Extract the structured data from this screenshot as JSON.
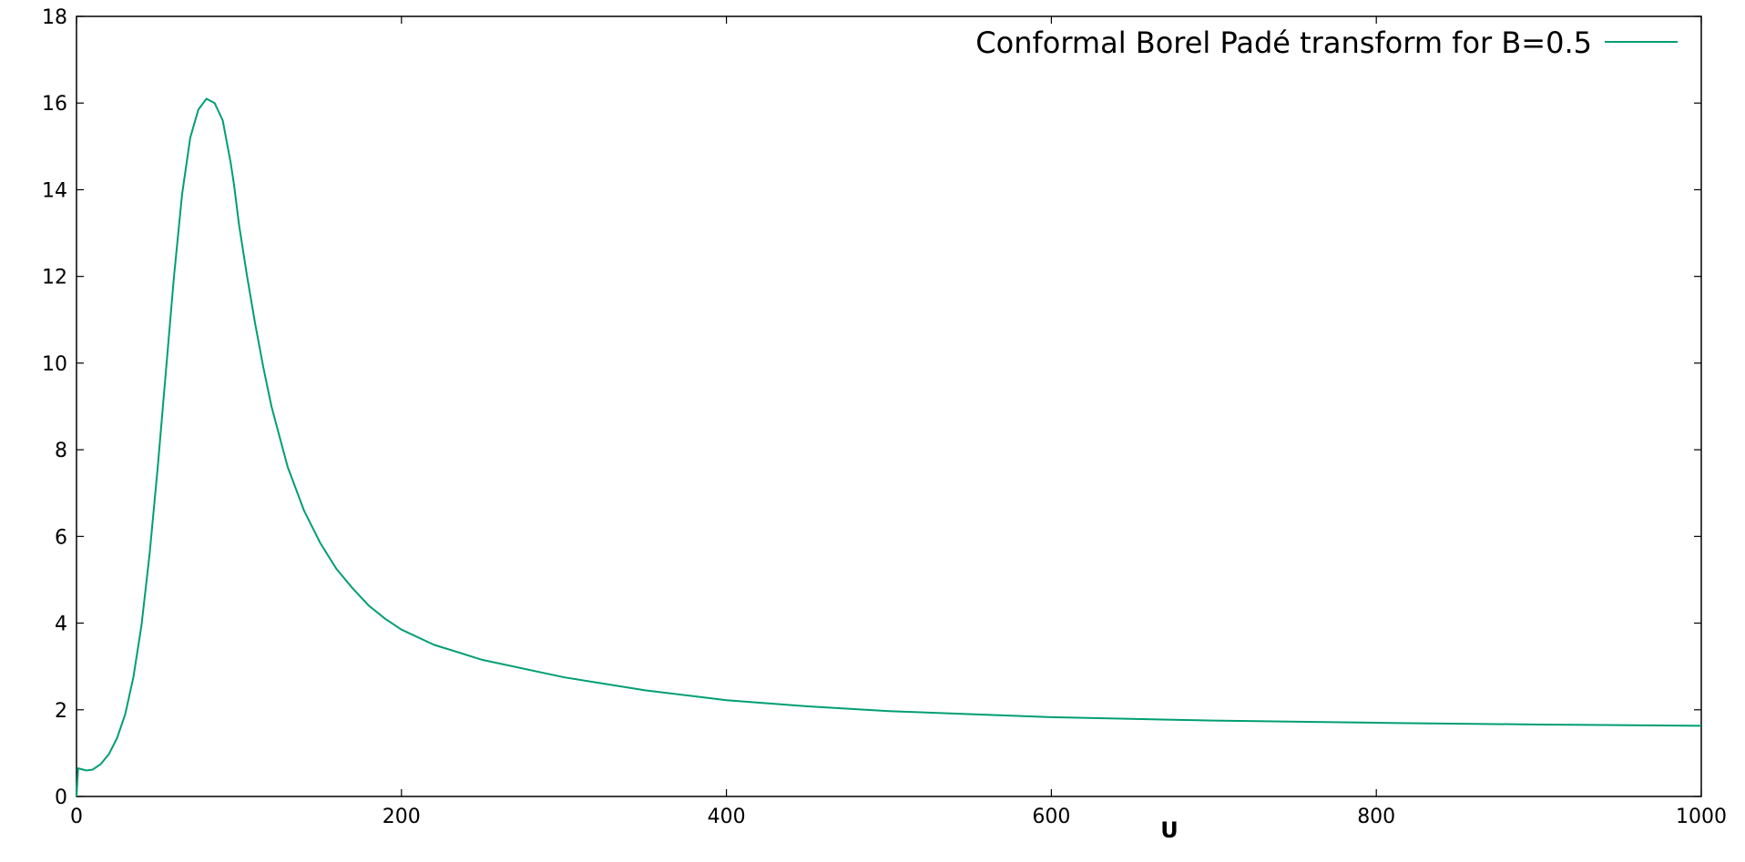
{
  "chart_data": {
    "type": "line",
    "title": "",
    "xlabel": "U",
    "ylabel": "",
    "xlim": [
      0,
      1000
    ],
    "ylim": [
      0,
      18
    ],
    "x_ticks": [
      0,
      200,
      400,
      600,
      800,
      1000
    ],
    "y_ticks": [
      0,
      2,
      4,
      6,
      8,
      10,
      12,
      14,
      16,
      18
    ],
    "grid": false,
    "legend_position": "top-right",
    "series": [
      {
        "name": "Conformal Borel Padé transform for B=0.5",
        "color": "#009e73",
        "x": [
          0,
          1,
          3,
          6,
          10,
          15,
          20,
          25,
          30,
          35,
          40,
          45,
          50,
          55,
          60,
          65,
          70,
          75,
          80,
          85,
          90,
          93,
          95,
          97,
          100,
          105,
          110,
          115,
          120,
          125,
          130,
          140,
          150,
          160,
          170,
          180,
          190,
          200,
          220,
          250,
          300,
          350,
          400,
          450,
          500,
          600,
          700,
          800,
          900,
          1000
        ],
        "values": [
          0.0,
          0.65,
          0.63,
          0.6,
          0.62,
          0.75,
          0.98,
          1.35,
          1.9,
          2.75,
          3.95,
          5.6,
          7.6,
          9.8,
          12.0,
          13.9,
          15.2,
          15.85,
          16.1,
          16.0,
          15.6,
          15.0,
          14.6,
          14.1,
          13.2,
          12.0,
          10.9,
          9.9,
          9.0,
          8.3,
          7.6,
          6.6,
          5.85,
          5.25,
          4.8,
          4.4,
          4.1,
          3.85,
          3.5,
          3.15,
          2.75,
          2.45,
          2.22,
          2.08,
          1.97,
          1.83,
          1.75,
          1.7,
          1.66,
          1.63
        ]
      }
    ]
  }
}
